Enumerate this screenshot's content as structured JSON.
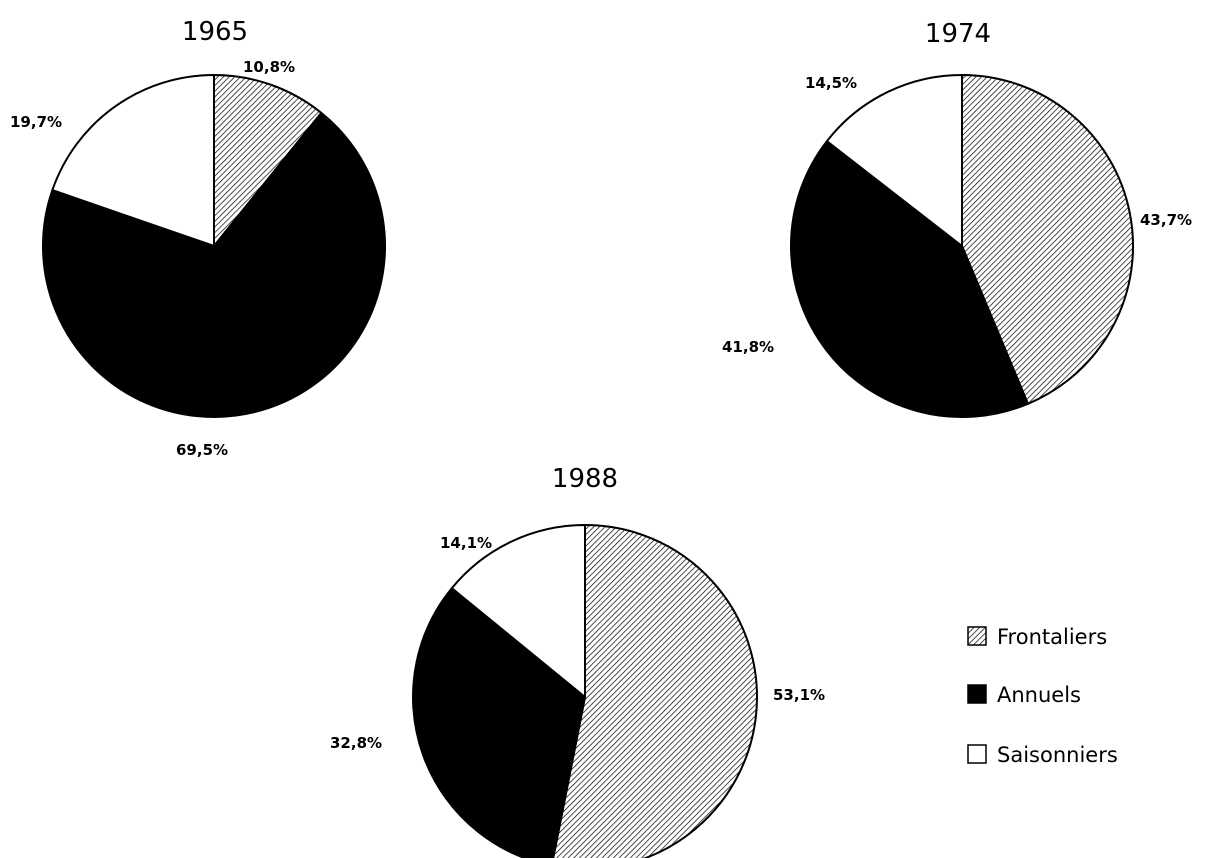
{
  "colors": {
    "frontaliers_fill": "hatch",
    "annuels_fill": "#000000",
    "saisonniers_fill": "#ffffff",
    "outline": "#000000"
  },
  "chart_data": [
    {
      "type": "pie",
      "title": "1965",
      "categories": [
        "Frontaliers",
        "Annuels",
        "Saisonniers"
      ],
      "values": [
        10.8,
        69.5,
        19.7
      ],
      "labels": [
        "10,8%",
        "69,5%",
        "19,7%"
      ]
    },
    {
      "type": "pie",
      "title": "1974",
      "categories": [
        "Frontaliers",
        "Annuels",
        "Saisonniers"
      ],
      "values": [
        43.7,
        41.8,
        14.5
      ],
      "labels": [
        "43,7%",
        "41,8%",
        "14,5%"
      ]
    },
    {
      "type": "pie",
      "title": "1988",
      "categories": [
        "Frontaliers",
        "Annuels",
        "Saisonniers"
      ],
      "values": [
        53.1,
        32.8,
        14.1
      ],
      "labels": [
        "53,1%",
        "32,8%",
        "14,1%"
      ]
    }
  ],
  "legend": {
    "placement": "bottom-right",
    "items": [
      {
        "label": "Frontaliers",
        "swatch": "hatch"
      },
      {
        "label": "Annuels",
        "swatch": "solid-black"
      },
      {
        "label": "Saisonniers",
        "swatch": "white"
      }
    ]
  }
}
